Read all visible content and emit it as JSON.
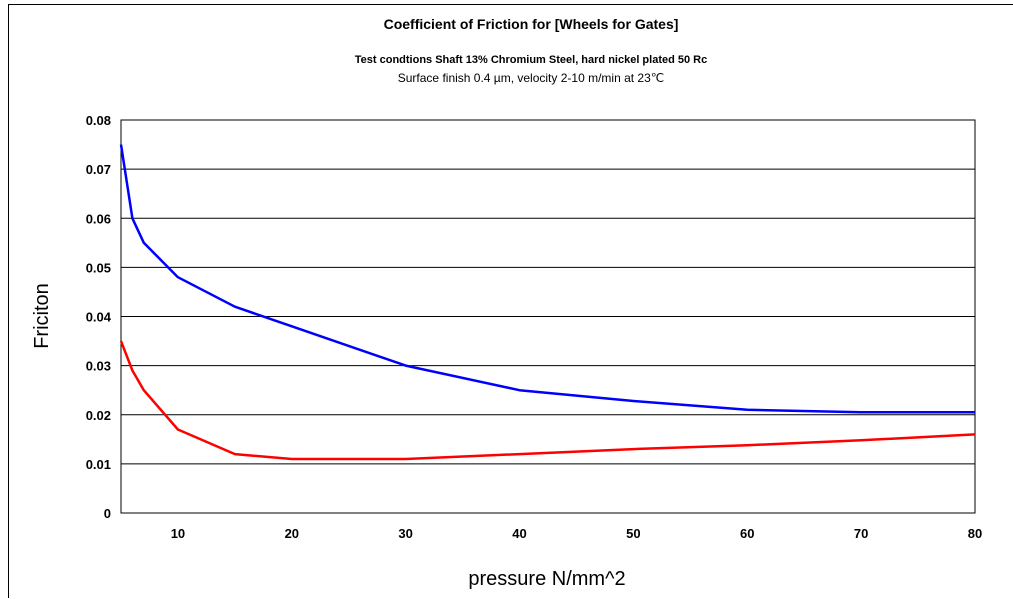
{
  "chart_data": {
    "type": "line",
    "title": "Coefficient of Friction for [Wheels for Gates]",
    "subtitle": "Test condtions Shaft 13% Chromium Steel, hard nickel plated 50 Rc",
    "subtitle2": "Surface finish 0.4 µm, velocity 2-10 m/min at 23℃",
    "xlabel": "pressure N/mm^2",
    "ylabel": "Friciton",
    "xlim": [
      5,
      80
    ],
    "ylim": [
      0,
      0.08
    ],
    "x_ticks": [
      10,
      20,
      30,
      40,
      50,
      60,
      70,
      80
    ],
    "y_ticks": [
      0,
      0.01,
      0.02,
      0.03,
      0.04,
      0.05,
      0.06,
      0.07,
      0.08
    ],
    "y_tick_labels": [
      "0",
      "0.01",
      "0.02",
      "0.03",
      "0.04",
      "0.05",
      "0.06",
      "0.07",
      "0.08"
    ],
    "grid": "horizontal",
    "legend": "none",
    "series": [
      {
        "color": "#0000ff",
        "x": [
          5,
          6,
          7,
          10,
          15,
          20,
          30,
          40,
          50,
          60,
          70,
          80
        ],
        "y": [
          0.075,
          0.06,
          0.055,
          0.048,
          0.042,
          0.038,
          0.03,
          0.025,
          0.0228,
          0.021,
          0.0205,
          0.0205
        ]
      },
      {
        "color": "#ff0000",
        "x": [
          5,
          6,
          7,
          10,
          15,
          20,
          30,
          40,
          50,
          60,
          70,
          80
        ],
        "y": [
          0.035,
          0.029,
          0.025,
          0.017,
          0.012,
          0.011,
          0.011,
          0.012,
          0.013,
          0.0138,
          0.0148,
          0.016
        ]
      }
    ]
  }
}
